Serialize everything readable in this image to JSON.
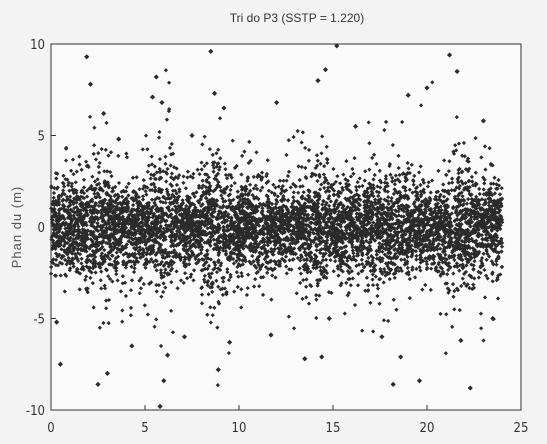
{
  "chart_data": {
    "type": "scatter",
    "title": "Tri do P3 (SSTP = 1.220)",
    "xlabel": "",
    "ylabel": "Phan du (m)",
    "xlim": [
      0,
      25
    ],
    "ylim": [
      -10,
      10
    ],
    "x_ticks": [
      "0",
      "5",
      "10",
      "15",
      "20",
      "25"
    ],
    "y_ticks": [
      "10",
      "5",
      "0",
      "-5",
      "-10"
    ],
    "grid": false,
    "legend": "none",
    "marker": "diamond",
    "marker_color": "#2b2b2b",
    "series": [
      {
        "x_range": [
          0,
          24
        ],
        "bulk_sigma_regions": [
          {
            "x": [
              0.0,
              1.5
            ],
            "sigma": 1.1
          },
          {
            "x": [
              1.5,
              3.0
            ],
            "sigma": 1.6
          },
          {
            "x": [
              3.0,
              5.5
            ],
            "sigma": 1.2
          },
          {
            "x": [
              5.5,
              6.5
            ],
            "sigma": 1.8
          },
          {
            "x": [
              6.5,
              8.0
            ],
            "sigma": 1.1
          },
          {
            "x": [
              8.0,
              9.5
            ],
            "sigma": 1.7
          },
          {
            "x": [
              9.5,
              11.5
            ],
            "sigma": 1.2
          },
          {
            "x": [
              11.5,
              13.5
            ],
            "sigma": 1.0
          },
          {
            "x": [
              13.5,
              15.0
            ],
            "sigma": 1.5
          },
          {
            "x": [
              15.0,
              17.0
            ],
            "sigma": 1.2
          },
          {
            "x": [
              17.0,
              19.0
            ],
            "sigma": 1.5
          },
          {
            "x": [
              19.0,
              21.0
            ],
            "sigma": 1.1
          },
          {
            "x": [
              21.0,
              22.5
            ],
            "sigma": 1.6
          },
          {
            "x": [
              22.5,
              24.0
            ],
            "sigma": 1.2
          }
        ],
        "outliers": [
          [
            0.3,
            -5.2
          ],
          [
            0.5,
            -7.5
          ],
          [
            1.9,
            9.3
          ],
          [
            2.1,
            7.8
          ],
          [
            2.5,
            -8.6
          ],
          [
            2.8,
            6.2
          ],
          [
            3.0,
            -8.0
          ],
          [
            3.6,
            4.8
          ],
          [
            4.3,
            -6.5
          ],
          [
            5.4,
            7.1
          ],
          [
            5.6,
            8.2
          ],
          [
            5.8,
            -9.8
          ],
          [
            5.9,
            6.8
          ],
          [
            6.0,
            -8.4
          ],
          [
            6.2,
            -7.0
          ],
          [
            7.1,
            -6.0
          ],
          [
            7.5,
            5.0
          ],
          [
            8.5,
            9.6
          ],
          [
            8.7,
            7.3
          ],
          [
            8.9,
            -7.8
          ],
          [
            9.2,
            6.5
          ],
          [
            9.5,
            -6.3
          ],
          [
            11.7,
            -5.9
          ],
          [
            12.0,
            6.8
          ],
          [
            13.5,
            -7.2
          ],
          [
            14.2,
            8.0
          ],
          [
            14.4,
            -7.1
          ],
          [
            14.6,
            8.6
          ],
          [
            14.8,
            -5.0
          ],
          [
            15.2,
            9.9
          ],
          [
            16.2,
            5.5
          ],
          [
            17.6,
            -6.0
          ],
          [
            18.2,
            -8.6
          ],
          [
            18.6,
            -7.1
          ],
          [
            19.0,
            7.2
          ],
          [
            19.6,
            -8.4
          ],
          [
            20.0,
            7.6
          ],
          [
            21.2,
            9.4
          ],
          [
            21.6,
            8.5
          ],
          [
            21.8,
            -6.2
          ],
          [
            22.3,
            -8.8
          ],
          [
            23.0,
            5.8
          ],
          [
            23.5,
            -5.0
          ]
        ]
      }
    ]
  }
}
